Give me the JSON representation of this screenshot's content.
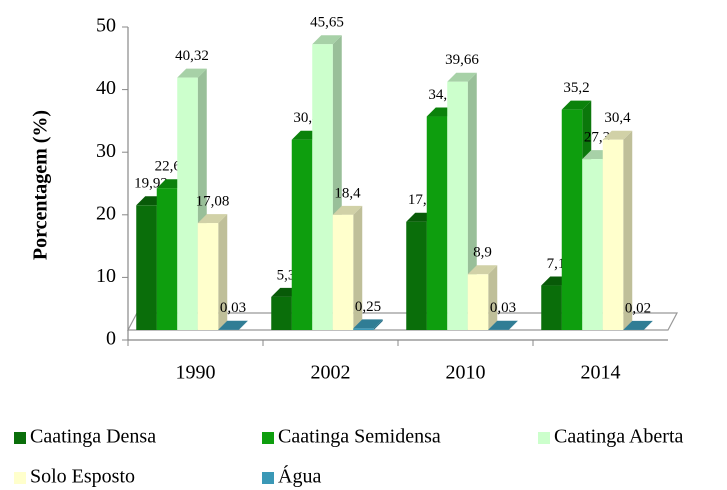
{
  "chart_data": {
    "type": "bar3d",
    "y_label": "Porcentagem (%)",
    "categories": [
      "1990",
      "2002",
      "2010",
      "2014"
    ],
    "series": [
      {
        "name": "Caatinga Densa",
        "color": "#0a6e0a",
        "values": [
          19.92,
          5.3,
          17.3,
          7.1
        ],
        "value_labels": [
          "19,92",
          "5,3",
          "17,3",
          "7,1"
        ]
      },
      {
        "name": "Caatinga Semidensa",
        "color": "#0e9e0e",
        "values": [
          22.65,
          30.4,
          34.1,
          35.2
        ],
        "value_labels": [
          "22,65",
          "30,4",
          "34,1",
          "35,2"
        ]
      },
      {
        "name": "Caatinga Aberta",
        "color": "#ccffcc",
        "values": [
          40.32,
          45.65,
          39.66,
          27.3
        ],
        "value_labels": [
          "40,32",
          "45,65",
          "39,66",
          "27,3"
        ]
      },
      {
        "name": "Solo Esposto",
        "color": "#ffffcc",
        "values": [
          17.08,
          18.4,
          8.9,
          30.4
        ],
        "value_labels": [
          "17,08",
          "18,4",
          "8,9",
          "30,4"
        ]
      },
      {
        "name": "Água",
        "color": "#3a98b6",
        "values": [
          0.03,
          0.25,
          0.03,
          0.02
        ],
        "value_labels": [
          "0,03",
          "0,25",
          "0,03",
          "0,02"
        ]
      }
    ],
    "ylim": [
      0,
      50
    ],
    "yticks": [
      0,
      10,
      20,
      30,
      40,
      50
    ]
  }
}
